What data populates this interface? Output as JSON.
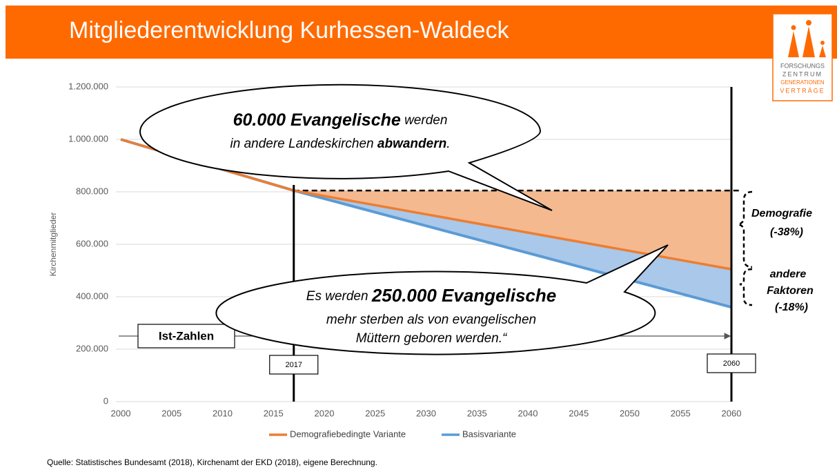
{
  "header": {
    "title": "Mitgliederentwicklung Kurhessen-Waldeck"
  },
  "logo": {
    "lines": [
      "FORSCHUNGS",
      "ZENTRUM",
      "GENERATIONEN",
      "VERTRÄGE"
    ]
  },
  "chart_data": {
    "type": "line",
    "y_label": "Kirchenmitglieder",
    "x": [
      2000,
      2017,
      2060
    ],
    "series": [
      {
        "name": "Demografiebedingte Variante",
        "color": "#ed7d31",
        "values": [
          1000000,
          805000,
          505000
        ]
      },
      {
        "name": "Basisvariante",
        "color": "#5b9bd5",
        "values": [
          1000000,
          805000,
          360000
        ]
      }
    ],
    "xlim": [
      2000,
      2060
    ],
    "xticks": [
      2000,
      2005,
      2010,
      2015,
      2020,
      2025,
      2030,
      2035,
      2040,
      2045,
      2050,
      2055,
      2060
    ],
    "ylim": [
      0,
      1200000
    ],
    "yticks": [
      0,
      {
        "value": 200000,
        "label": "200.000"
      },
      {
        "value": 400000,
        "label": "400.000"
      },
      {
        "value": 600000,
        "label": "600.000"
      },
      {
        "value": 800000,
        "label": "800.000"
      },
      {
        "value": 1000000,
        "label": "1.000.000"
      },
      {
        "value": 1200000,
        "label": "1.200.000"
      }
    ],
    "grid": true,
    "legend": "bottom",
    "vlines": [
      2017,
      2060
    ],
    "range_label": "Ist-Zahlen",
    "bubble_top": {
      "line1": [
        "60.000 Evangelische",
        " werden"
      ],
      "line2": [
        "in andere Landeskirchen ",
        "abwandern",
        "."
      ]
    },
    "bubble_bottom": {
      "line1": [
        "Es werden ",
        "250.000 Evangelische"
      ],
      "line2": "mehr sterben als von evangelischen",
      "line3": "Müttern geboren werden.“"
    },
    "brace_top": [
      "Demografie",
      "(-38%)"
    ],
    "brace_bottom": [
      "andere",
      "Faktoren",
      "(-18%)"
    ]
  },
  "source": "Quelle: Statistisches Bundesamt (2018), Kirchenamt der EKD (2018), eigene Berechnung."
}
